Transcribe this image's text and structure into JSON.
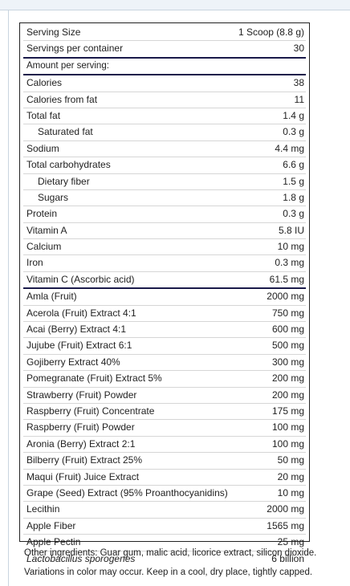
{
  "serving": [
    {
      "name": "Serving Size",
      "value": "1 Scoop (8.8 g)"
    },
    {
      "name": "Servings per container",
      "value": "30"
    }
  ],
  "amount_header": "Amount per serving:",
  "nutrients": [
    {
      "name": "Calories",
      "value": "38"
    },
    {
      "name": "Calories from fat",
      "value": "11"
    },
    {
      "name": "Total fat",
      "value": "1.4 g"
    },
    {
      "name": "Saturated fat",
      "value": "0.3 g"
    },
    {
      "name": "Sodium",
      "value": "4.4 mg"
    },
    {
      "name": "Total carbohydrates",
      "value": "6.6 g"
    },
    {
      "name": "Dietary fiber",
      "value": "1.5 g"
    },
    {
      "name": "Sugars",
      "value": "1.8 g"
    },
    {
      "name": "Protein",
      "value": "0.3 g"
    },
    {
      "name": "Vitamin A",
      "value": "5.8 IU"
    },
    {
      "name": "Calcium",
      "value": "10 mg"
    },
    {
      "name": "Iron",
      "value": "0.3 mg"
    },
    {
      "name": "Vitamin C (Ascorbic acid)",
      "value": "61.5 mg"
    }
  ],
  "ingredients": [
    {
      "name": "Amla (Fruit)",
      "value": "2000 mg"
    },
    {
      "name": "Acerola (Fruit) Extract 4:1",
      "value": "750 mg"
    },
    {
      "name": "Acai (Berry) Extract 4:1",
      "value": "600 mg"
    },
    {
      "name": "Jujube (Fruit) Extract 6:1",
      "value": "500 mg"
    },
    {
      "name": "Gojiberry Extract 40%",
      "value": "300 mg"
    },
    {
      "name": "Pomegranate (Fruit) Extract 5%",
      "value": "200 mg"
    },
    {
      "name": "Strawberry (Fruit) Powder",
      "value": "200 mg"
    },
    {
      "name": "Raspberry (Fruit) Concentrate",
      "value": "175 mg"
    },
    {
      "name": "Raspberry (Fruit) Powder",
      "value": "100 mg"
    },
    {
      "name": "Aronia (Berry) Extract 2:1",
      "value": "100 mg"
    },
    {
      "name": "Bilberry (Fruit) Extract 25%",
      "value": "50 mg"
    },
    {
      "name": "Maqui (Fruit) Juice Extract",
      "value": "20 mg"
    },
    {
      "name": "Grape (Seed) Extract (95% Proanthocyanidins)",
      "value": "10 mg"
    },
    {
      "name": "Lecithin",
      "value": "2000 mg"
    },
    {
      "name": "Apple Fiber",
      "value": "1565 mg"
    },
    {
      "name": "Apple Pectin",
      "value": "25 mg"
    },
    {
      "name": "Lactobacillus sporogenes",
      "value": "6 billion"
    }
  ],
  "notes": {
    "other_ingredients": "Other ingredients: Guar gum, malic acid, licorice extract, silicon dioxide.",
    "variations": "Variations in color may occur. Keep in a cool, dry place, tightly capped."
  }
}
